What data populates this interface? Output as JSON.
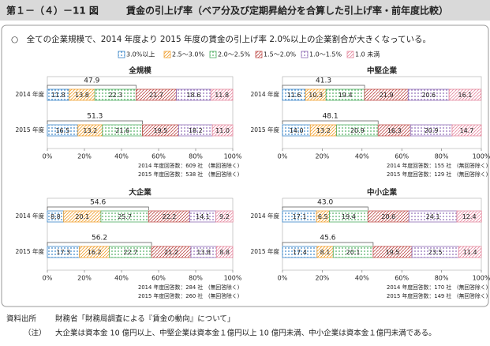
{
  "header": {
    "figure_label": "第１－（４）－11 図",
    "title": "賃金の引上げ率（ベア分及び定期昇給分を合算した引上げ率・前年度比較）"
  },
  "summary": "○　全ての企業規模で、2014 年度より 2015 年度の賃金の引上げ率 2.0%以上の企業割合が大きくなっている。",
  "legend": [
    {
      "name": "3.0%以上",
      "color": "#3a86c8"
    },
    {
      "name": "2.5～3.0%",
      "color": "#f0a030"
    },
    {
      "name": "2.0～2.5%",
      "color": "#4fae62"
    },
    {
      "name": "1.5～2.0%",
      "color": "#c0504d"
    },
    {
      "name": "1.0～1.5%",
      "color": "#8e6bb5"
    },
    {
      "name": "1.0 未満",
      "color": "#e58aa0"
    }
  ],
  "chart_data": [
    {
      "type": "bar",
      "orientation": "horizontal",
      "stacked": true,
      "title": "全規模",
      "categories": [
        "2014 年度",
        "2015 年度"
      ],
      "series": [
        {
          "values": [
            11.8,
            16.5
          ]
        },
        {
          "values": [
            13.8,
            13.2
          ]
        },
        {
          "values": [
            22.3,
            21.6
          ]
        },
        {
          "values": [
            21.7,
            19.5
          ]
        },
        {
          "values": [
            18.6,
            18.2
          ]
        },
        {
          "values": [
            11.8,
            11
          ],
          "value_labels": [
            "11.8",
            "11.0"
          ]
        }
      ],
      "brackets": [
        47.9,
        51.3
      ],
      "xlim": [
        0,
        100
      ],
      "xticks": [
        {
          "value": 0,
          "label": "0%"
        },
        {
          "value": 20,
          "label": "20%"
        },
        {
          "value": 40,
          "label": "40%"
        },
        {
          "value": 60,
          "label": "60%"
        },
        {
          "value": 80,
          "label": "80%"
        },
        {
          "value": 100,
          "label": "100%"
        }
      ],
      "notes": [
        "2014 年度回答数：609 社　(無回答除く)",
        "2015 年度回答数：538 社　(無回答除く)"
      ]
    },
    {
      "type": "bar",
      "orientation": "horizontal",
      "stacked": true,
      "title": "中堅企業",
      "categories": [
        "2014 年度",
        "2015 年度"
      ],
      "series": [
        {
          "values": [
            11.6,
            14
          ],
          "value_labels": [
            "11.6",
            "14.0"
          ]
        },
        {
          "values": [
            10.3,
            13.2
          ]
        },
        {
          "values": [
            19.4,
            20.9
          ]
        },
        {
          "values": [
            21.9,
            16.3
          ]
        },
        {
          "values": [
            20.6,
            20.9
          ]
        },
        {
          "values": [
            16.1,
            14.7
          ]
        }
      ],
      "brackets": [
        41.3,
        48.1
      ],
      "xlim": [
        0,
        100
      ],
      "xticks": [
        {
          "value": 0,
          "label": "0%"
        },
        {
          "value": 20,
          "label": "20%"
        },
        {
          "value": 40,
          "label": "40%"
        },
        {
          "value": 60,
          "label": "60%"
        },
        {
          "value": 80,
          "label": "80%"
        },
        {
          "value": 100,
          "label": "100%"
        }
      ],
      "notes": [
        "2014 年度回答数：155 社　(無回答除く)",
        "2015 年度回答数：129 社　(無回答除く)"
      ]
    },
    {
      "type": "bar",
      "orientation": "horizontal",
      "stacked": true,
      "title": "大企業",
      "categories": [
        "2014 年度",
        "2015 年度"
      ],
      "series": [
        {
          "values": [
            8.8,
            17.3
          ]
        },
        {
          "values": [
            20.1,
            16.2
          ]
        },
        {
          "values": [
            25.7,
            22.7
          ]
        },
        {
          "values": [
            22.2,
            21.2
          ]
        },
        {
          "values": [
            14.1,
            13.8
          ]
        },
        {
          "values": [
            9.2,
            8.8
          ]
        }
      ],
      "brackets": [
        54.6,
        56.2
      ],
      "xlim": [
        0,
        100
      ],
      "xticks": [
        {
          "value": 0,
          "label": "0%"
        },
        {
          "value": 20,
          "label": "20%"
        },
        {
          "value": 40,
          "label": "40%"
        },
        {
          "value": 60,
          "label": "60%"
        },
        {
          "value": 80,
          "label": "80%"
        },
        {
          "value": 100,
          "label": "100%"
        }
      ],
      "notes": [
        "2014 年度回答数：284 社　(無回答除く)",
        "2015 年度回答数：260 社　(無回答除く)"
      ]
    },
    {
      "type": "bar",
      "orientation": "horizontal",
      "stacked": true,
      "title": "中小企業",
      "categories": [
        "2014 年度",
        "2015 年度"
      ],
      "series": [
        {
          "values": [
            17.1,
            17.4
          ]
        },
        {
          "values": [
            6.5,
            8.1
          ]
        },
        {
          "values": [
            19.4,
            20.1
          ]
        },
        {
          "values": [
            20.6,
            19.5
          ]
        },
        {
          "values": [
            24.1,
            23.5
          ]
        },
        {
          "values": [
            12.4,
            11.4
          ]
        }
      ],
      "brackets": [
        {
          "value": 43,
          "label": "43.0"
        },
        45.6
      ],
      "xlim": [
        0,
        100
      ],
      "xticks": [
        {
          "value": 0,
          "label": "0%"
        },
        {
          "value": 20,
          "label": "20%"
        },
        {
          "value": 40,
          "label": "40%"
        },
        {
          "value": 60,
          "label": "60%"
        },
        {
          "value": 80,
          "label": "80%"
        },
        {
          "value": 100,
          "label": "100%"
        }
      ],
      "notes": [
        "2014 年度回答数：170 社　(無回答除く)",
        "2015 年度回答数：149 社　(無回答除く)"
      ]
    }
  ],
  "footer": {
    "source_label": "資料出所",
    "source": "財務省「財務局調査による『賃金の動向』について」",
    "note_label": "（注）",
    "note": "大企業は資本金 10 億円以上、中堅企業は資本金１億円以上 10 億円未満、中小企業は資本金１億円未満である。"
  }
}
